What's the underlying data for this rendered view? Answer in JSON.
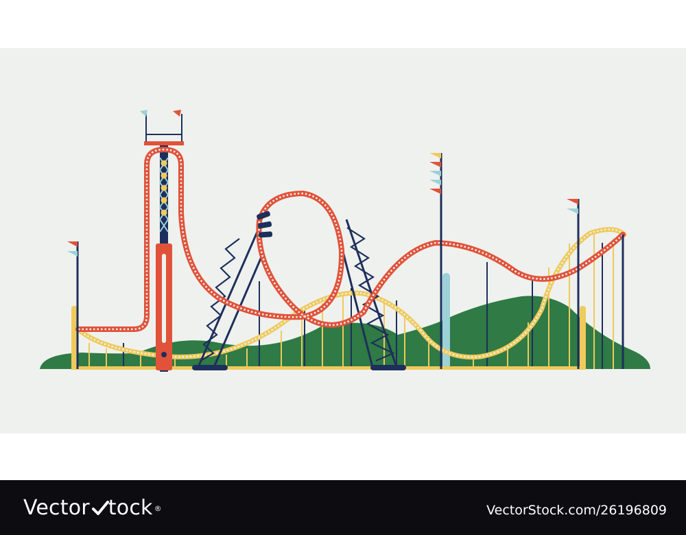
{
  "colors": {
    "background": "#eff1ee",
    "red_track": "#e0523a",
    "yellow_track": "#efca5c",
    "navy": "#1d2f5c",
    "hills": "#2f7a45",
    "light_blue": "#9cd1d8",
    "footer": "#0c0c11"
  },
  "watermark": {
    "brand_prefix": "Vector",
    "brand_suffix": "tock",
    "check_icon": "check-icon",
    "image_id": "VectorStock.com/26196809"
  }
}
